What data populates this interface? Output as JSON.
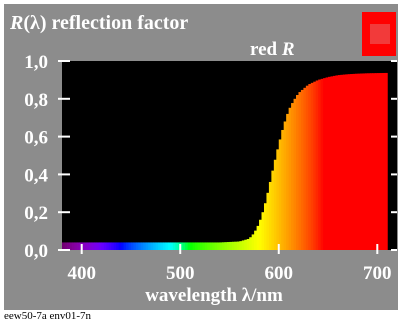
{
  "header": {
    "title_symbol": "R",
    "title_rest": "(λ) reflection factor",
    "series_prefix": "red ",
    "series_symbol": "R"
  },
  "footer": {
    "code": "eew50-7a env01-7n"
  },
  "colors": {
    "panel_background": "#8c8c8c",
    "plot_background": "#000000",
    "swatch": "#ff0000",
    "swatch_inner": "#f23a3a",
    "text": "#ffffff"
  },
  "chart_data": {
    "type": "area",
    "title": "R(λ) reflection factor",
    "xlabel": "wavelength λ/nm",
    "ylabel": "",
    "xlim": [
      380,
      720
    ],
    "ylim": [
      0,
      1.0
    ],
    "x_ticks": [
      400,
      500,
      600,
      700
    ],
    "x_tick_labels": [
      "400",
      "500",
      "600",
      "700"
    ],
    "y_ticks": [
      0,
      0.2,
      0.4,
      0.6,
      0.8,
      1.0
    ],
    "y_tick_labels": [
      "0,0",
      "0,2",
      "0,4",
      "0,6",
      "0,8",
      "1,0"
    ],
    "legend": "red R",
    "grid": false,
    "series": [
      {
        "name": "red R",
        "x": [
          380,
          400,
          420,
          440,
          460,
          480,
          500,
          520,
          540,
          560,
          570,
          575,
          580,
          585,
          590,
          595,
          600,
          605,
          610,
          615,
          620,
          630,
          640,
          650,
          660,
          670,
          680,
          690,
          700,
          710
        ],
        "y": [
          0.04,
          0.04,
          0.04,
          0.04,
          0.04,
          0.04,
          0.04,
          0.04,
          0.04,
          0.045,
          0.06,
          0.09,
          0.14,
          0.22,
          0.33,
          0.45,
          0.56,
          0.66,
          0.74,
          0.79,
          0.83,
          0.875,
          0.9,
          0.915,
          0.925,
          0.93,
          0.933,
          0.935,
          0.936,
          0.937
        ]
      }
    ]
  }
}
